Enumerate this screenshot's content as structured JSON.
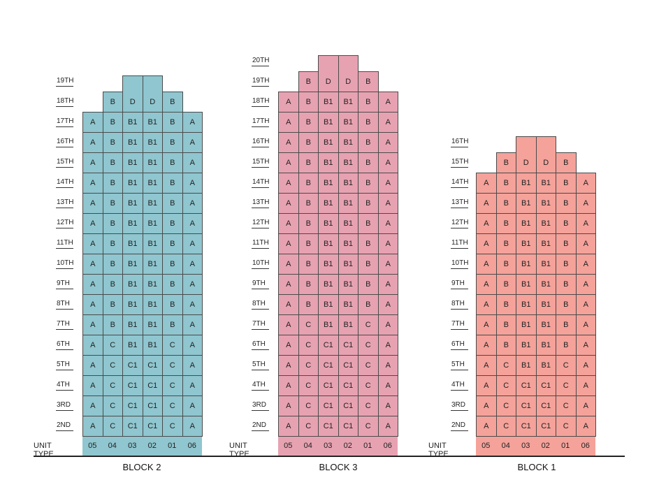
{
  "blocks": [
    {
      "name": "BLOCK 2",
      "color": "#8fc6cf",
      "unit_type_label": "UNIT TYPE",
      "unit_types": [
        "05",
        "04",
        "03",
        "02",
        "01",
        "06"
      ],
      "floor_labels": [
        "2ND",
        "3RD",
        "4TH",
        "5TH",
        "6TH",
        "7TH",
        "8TH",
        "9TH",
        "10TH",
        "11TH",
        "12TH",
        "13TH",
        "14TH",
        "15TH",
        "16TH",
        "17TH",
        "18TH",
        "19TH"
      ],
      "floors": [
        [
          "A",
          "C",
          "C1",
          "C1",
          "C",
          "A"
        ],
        [
          "A",
          "C",
          "C1",
          "C1",
          "C",
          "A"
        ],
        [
          "A",
          "C",
          "C1",
          "C1",
          "C",
          "A"
        ],
        [
          "A",
          "C",
          "C1",
          "C1",
          "C",
          "A"
        ],
        [
          "A",
          "C",
          "B1",
          "B1",
          "C",
          "A"
        ],
        [
          "A",
          "B",
          "B1",
          "B1",
          "B",
          "A"
        ],
        [
          "A",
          "B",
          "B1",
          "B1",
          "B",
          "A"
        ],
        [
          "A",
          "B",
          "B1",
          "B1",
          "B",
          "A"
        ],
        [
          "A",
          "B",
          "B1",
          "B1",
          "B",
          "A"
        ],
        [
          "A",
          "B",
          "B1",
          "B1",
          "B",
          "A"
        ],
        [
          "A",
          "B",
          "B1",
          "B1",
          "B",
          "A"
        ],
        [
          "A",
          "B",
          "B1",
          "B1",
          "B",
          "A"
        ],
        [
          "A",
          "B",
          "B1",
          "B1",
          "B",
          "A"
        ],
        [
          "A",
          "B",
          "B1",
          "B1",
          "B",
          "A"
        ],
        [
          "A",
          "B",
          "B1",
          "B1",
          "B",
          "A"
        ],
        [
          "A",
          "B",
          "B1",
          "B1",
          "B",
          "A"
        ],
        [
          "",
          "B",
          "D",
          "D",
          "B",
          ""
        ],
        [
          "",
          "",
          "",
          "",
          "",
          ""
        ]
      ]
    },
    {
      "name": "BLOCK 3",
      "color": "#e7a2b1",
      "unit_type_label": "UNIT TYPE",
      "unit_types": [
        "05",
        "04",
        "03",
        "02",
        "01",
        "06"
      ],
      "floor_labels": [
        "2ND",
        "3RD",
        "4TH",
        "5TH",
        "6TH",
        "7TH",
        "8TH",
        "9TH",
        "10TH",
        "11TH",
        "12TH",
        "13TH",
        "14TH",
        "15TH",
        "16TH",
        "17TH",
        "18TH",
        "19TH",
        "20TH"
      ],
      "floors": [
        [
          "A",
          "C",
          "C1",
          "C1",
          "C",
          "A"
        ],
        [
          "A",
          "C",
          "C1",
          "C1",
          "C",
          "A"
        ],
        [
          "A",
          "C",
          "C1",
          "C1",
          "C",
          "A"
        ],
        [
          "A",
          "C",
          "C1",
          "C1",
          "C",
          "A"
        ],
        [
          "A",
          "C",
          "C1",
          "C1",
          "C",
          "A"
        ],
        [
          "A",
          "C",
          "B1",
          "B1",
          "C",
          "A"
        ],
        [
          "A",
          "B",
          "B1",
          "B1",
          "B",
          "A"
        ],
        [
          "A",
          "B",
          "B1",
          "B1",
          "B",
          "A"
        ],
        [
          "A",
          "B",
          "B1",
          "B1",
          "B",
          "A"
        ],
        [
          "A",
          "B",
          "B1",
          "B1",
          "B",
          "A"
        ],
        [
          "A",
          "B",
          "B1",
          "B1",
          "B",
          "A"
        ],
        [
          "A",
          "B",
          "B1",
          "B1",
          "B",
          "A"
        ],
        [
          "A",
          "B",
          "B1",
          "B1",
          "B",
          "A"
        ],
        [
          "A",
          "B",
          "B1",
          "B1",
          "B",
          "A"
        ],
        [
          "A",
          "B",
          "B1",
          "B1",
          "B",
          "A"
        ],
        [
          "A",
          "B",
          "B1",
          "B1",
          "B",
          "A"
        ],
        [
          "A",
          "B",
          "B1",
          "B1",
          "B",
          "A"
        ],
        [
          "",
          "B",
          "D",
          "D",
          "B",
          ""
        ],
        [
          "",
          "",
          "",
          "",
          "",
          ""
        ]
      ]
    },
    {
      "name": "BLOCK 1",
      "color": "#f4a29a",
      "unit_type_label": "UNIT TYPE",
      "unit_types": [
        "05",
        "04",
        "03",
        "02",
        "01",
        "06"
      ],
      "floor_labels": [
        "2ND",
        "3RD",
        "4TH",
        "5TH",
        "6TH",
        "7TH",
        "8TH",
        "9TH",
        "10TH",
        "11TH",
        "12TH",
        "13TH",
        "14TH",
        "15TH",
        "16TH"
      ],
      "floors": [
        [
          "A",
          "C",
          "C1",
          "C1",
          "C",
          "A"
        ],
        [
          "A",
          "C",
          "C1",
          "C1",
          "C",
          "A"
        ],
        [
          "A",
          "C",
          "C1",
          "C1",
          "C",
          "A"
        ],
        [
          "A",
          "C",
          "B1",
          "B1",
          "C",
          "A"
        ],
        [
          "A",
          "B",
          "B1",
          "B1",
          "B",
          "A"
        ],
        [
          "A",
          "B",
          "B1",
          "B1",
          "B",
          "A"
        ],
        [
          "A",
          "B",
          "B1",
          "B1",
          "B",
          "A"
        ],
        [
          "A",
          "B",
          "B1",
          "B1",
          "B",
          "A"
        ],
        [
          "A",
          "B",
          "B1",
          "B1",
          "B",
          "A"
        ],
        [
          "A",
          "B",
          "B1",
          "B1",
          "B",
          "A"
        ],
        [
          "A",
          "B",
          "B1",
          "B1",
          "B",
          "A"
        ],
        [
          "A",
          "B",
          "B1",
          "B1",
          "B",
          "A"
        ],
        [
          "A",
          "B",
          "B1",
          "B1",
          "B",
          "A"
        ],
        [
          "",
          "B",
          "D",
          "D",
          "B",
          ""
        ],
        [
          "",
          "",
          "",
          "",
          "",
          ""
        ]
      ]
    }
  ]
}
